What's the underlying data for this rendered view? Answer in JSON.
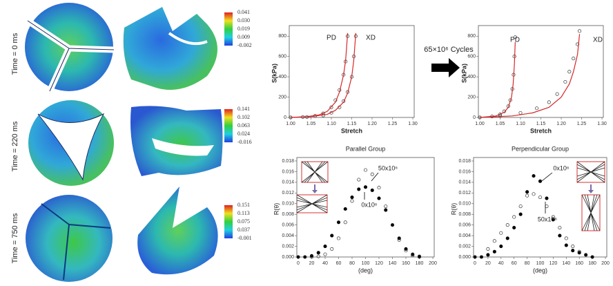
{
  "time_labels": [
    "Time = 0 ms",
    "Time = 220 ms",
    "Time = 750 ms"
  ],
  "colorbars": [
    [
      "0.041",
      "0.030",
      "0.019",
      "0.009",
      "-0.002"
    ],
    [
      "0.141",
      "0.102",
      "0.063",
      "0.024",
      "-0.016"
    ],
    [
      "0.151",
      "0.113",
      "0.075",
      "0.037",
      "-0.001"
    ]
  ],
  "cycles_label": "65×10⁶ Cycles",
  "chart_data": [
    {
      "type": "scatter",
      "x_label": "Stretch",
      "y_label": "S(kPa)",
      "annotations": [
        "PD",
        "XD"
      ],
      "xlim": [
        1.0,
        1.3
      ],
      "xticks": [
        {
          "value": 1.0,
          "label": "1.00"
        },
        1.05,
        {
          "value": 1.1,
          "label": "1.10"
        },
        1.15,
        {
          "value": 1.2,
          "label": "1.20"
        },
        1.25,
        {
          "value": 1.3,
          "label": "1.30"
        }
      ],
      "ylim": [
        0,
        870
      ],
      "yticks": [
        0,
        200,
        400,
        600,
        800
      ],
      "series": [
        {
          "mode": "markers",
          "marker": "open",
          "color": "#333333",
          "x": [
            1.0,
            1.03,
            1.06,
            1.08,
            1.1,
            1.11,
            1.12,
            1.13,
            1.135,
            1.14
          ],
          "values": [
            0,
            5,
            15,
            40,
            100,
            170,
            270,
            420,
            550,
            800
          ]
        },
        {
          "mode": "line",
          "color": "#d62728",
          "x": [
            1.0,
            1.04,
            1.07,
            1.09,
            1.11,
            1.12,
            1.13,
            1.135,
            1.14
          ],
          "values": [
            0,
            8,
            25,
            60,
            150,
            250,
            420,
            560,
            830
          ]
        },
        {
          "mode": "markers",
          "marker": "open",
          "color": "#333333",
          "x": [
            1.0,
            1.04,
            1.08,
            1.1,
            1.12,
            1.13,
            1.14,
            1.15,
            1.155,
            1.16
          ],
          "values": [
            0,
            5,
            20,
            45,
            100,
            160,
            250,
            400,
            600,
            800
          ]
        },
        {
          "mode": "line",
          "color": "#d62728",
          "x": [
            1.0,
            1.05,
            1.09,
            1.11,
            1.13,
            1.14,
            1.15,
            1.155,
            1.16
          ],
          "values": [
            0,
            8,
            30,
            70,
            150,
            240,
            400,
            560,
            830
          ]
        }
      ]
    },
    {
      "type": "scatter",
      "x_label": "Stretch",
      "y_label": "S(kPa)",
      "annotations": [
        "PD",
        "XD"
      ],
      "xlim": [
        1.0,
        1.3
      ],
      "xticks": [
        {
          "value": 1.0,
          "label": "1.00"
        },
        1.05,
        {
          "value": 1.1,
          "label": "1.10"
        },
        1.15,
        {
          "value": 1.2,
          "label": "1.20"
        },
        1.25,
        {
          "value": 1.3,
          "label": "1.30"
        }
      ],
      "ylim": [
        0,
        870
      ],
      "yticks": [
        0,
        200,
        400,
        600,
        800
      ],
      "series": [
        {
          "mode": "markers",
          "marker": "open",
          "color": "#333333",
          "x": [
            1.0,
            1.03,
            1.05,
            1.06,
            1.07,
            1.075,
            1.08,
            1.083,
            1.085,
            1.087
          ],
          "values": [
            0,
            10,
            30,
            60,
            110,
            170,
            280,
            420,
            600,
            790
          ]
        },
        {
          "mode": "line",
          "color": "#d62728",
          "x": [
            1.0,
            1.04,
            1.06,
            1.07,
            1.078,
            1.082,
            1.085,
            1.087
          ],
          "values": [
            0,
            15,
            50,
            100,
            200,
            330,
            520,
            740
          ]
        },
        {
          "mode": "markers",
          "marker": "open",
          "color": "#333333",
          "x": [
            1.0,
            1.05,
            1.1,
            1.14,
            1.17,
            1.19,
            1.21,
            1.22,
            1.23,
            1.24,
            1.245
          ],
          "values": [
            0,
            15,
            45,
            90,
            150,
            230,
            350,
            450,
            580,
            720,
            850
          ]
        },
        {
          "mode": "line",
          "color": "#d62728",
          "x": [
            1.0,
            1.08,
            1.13,
            1.17,
            1.2,
            1.22,
            1.23,
            1.24,
            1.245
          ],
          "values": [
            0,
            15,
            45,
            100,
            200,
            330,
            450,
            620,
            820
          ]
        }
      ]
    },
    {
      "type": "scatter",
      "title": "Parallel Group",
      "x_label": "(deg)",
      "y_label": "R(θ)",
      "annotations": [
        "50x10⁶",
        "0x10⁶"
      ],
      "xlim": [
        0,
        200
      ],
      "xticks": [
        0,
        20,
        40,
        60,
        80,
        100,
        120,
        140,
        160,
        180,
        200
      ],
      "ylim": [
        0,
        0.018
      ],
      "yticks": [
        {
          "value": 0,
          "label": "0.000"
        },
        0.002,
        0.004,
        0.006,
        0.008,
        {
          "value": 0.01,
          "label": "0.010"
        },
        0.012,
        0.014,
        0.016,
        0.018
      ],
      "series": [
        {
          "mode": "markers",
          "marker": "filled",
          "color": "#000000",
          "x": [
            0,
            10,
            20,
            30,
            40,
            50,
            60,
            70,
            80,
            90,
            100,
            110,
            120,
            130,
            140,
            150,
            160,
            170,
            180
          ],
          "values": [
            0,
            0,
            0.0002,
            0.0008,
            0.002,
            0.004,
            0.0065,
            0.009,
            0.0112,
            0.0127,
            0.0131,
            0.0125,
            0.011,
            0.0088,
            0.006,
            0.0035,
            0.0015,
            0.0005,
            0.0001
          ]
        },
        {
          "mode": "markers",
          "marker": "open",
          "color": "#333333",
          "x": [
            0,
            10,
            20,
            30,
            40,
            50,
            60,
            70,
            80,
            90,
            100,
            110,
            120,
            130,
            140,
            150,
            160,
            170,
            180
          ],
          "values": [
            0,
            0,
            0,
            0.0001,
            0.0005,
            0.0015,
            0.0035,
            0.0065,
            0.0105,
            0.0145,
            0.0163,
            0.0155,
            0.013,
            0.0095,
            0.006,
            0.0032,
            0.0012,
            0.0003,
            0
          ]
        }
      ]
    },
    {
      "type": "scatter",
      "title": "Perpendicular Group",
      "x_label": "(deg)",
      "y_label": "R(θ)",
      "annotations": [
        "0x10⁶",
        "50x10⁶"
      ],
      "xlim": [
        0,
        200
      ],
      "xticks": [
        0,
        20,
        40,
        60,
        80,
        100,
        120,
        140,
        160,
        180,
        200
      ],
      "ylim": [
        0,
        0.018
      ],
      "yticks": [
        {
          "value": 0,
          "label": "0.000"
        },
        0.002,
        0.004,
        0.006,
        0.008,
        {
          "value": 0.01,
          "label": "0.010"
        },
        0.012,
        0.014,
        0.016,
        0.018
      ],
      "series": [
        {
          "mode": "markers",
          "marker": "filled",
          "color": "#000000",
          "x": [
            0,
            10,
            20,
            30,
            40,
            50,
            60,
            70,
            80,
            90,
            100,
            110,
            120,
            130,
            140,
            150,
            160,
            170,
            180
          ],
          "values": [
            0,
            0,
            0.0004,
            0.001,
            0.002,
            0.0035,
            0.0055,
            0.008,
            0.0122,
            0.0152,
            0.0142,
            0.011,
            0.007,
            0.004,
            0.0022,
            0.0012,
            0.0008,
            0.0004,
            0
          ]
        },
        {
          "mode": "markers",
          "marker": "open",
          "color": "#333333",
          "x": [
            0,
            10,
            20,
            30,
            40,
            50,
            60,
            70,
            80,
            90,
            100,
            110,
            120,
            130,
            140,
            150,
            160,
            170,
            180
          ],
          "values": [
            0,
            0,
            0.0015,
            0.003,
            0.0045,
            0.006,
            0.0075,
            0.0095,
            0.0115,
            0.0118,
            0.0112,
            0.0095,
            0.0075,
            0.0055,
            0.0035,
            0.002,
            0.001,
            0.0004,
            0
          ]
        }
      ]
    }
  ]
}
